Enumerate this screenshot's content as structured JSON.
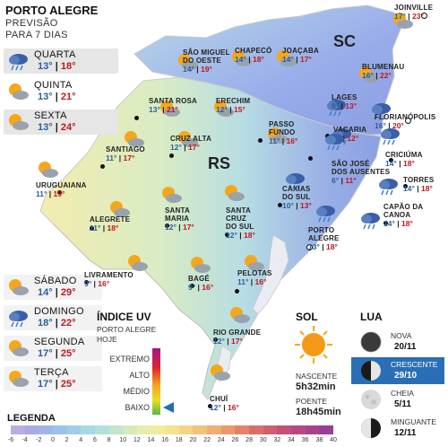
{
  "header": {
    "title": "PORTO ALEGRE",
    "subtitle1": "PREVISÃO",
    "subtitle2": "PARA 7 DIAS"
  },
  "forecast": [
    {
      "day": "QUARTA",
      "min": "13°",
      "max": "18°",
      "icon": "rain-cloud-icon"
    },
    {
      "day": "QUINTA",
      "min": "13°",
      "max": "21°",
      "icon": "sun-cloud-icon"
    },
    {
      "day": "SEXTA",
      "min": "13°",
      "max": "24°",
      "icon": "sun-cloud-icon"
    },
    {
      "day": "SÁBADO",
      "min": "14°",
      "max": "29°",
      "icon": "sun-cloud-icon"
    },
    {
      "day": "DOMINGO",
      "min": "18°",
      "max": "22°",
      "icon": "rain-cloud-icon"
    },
    {
      "day": "SEGUNDA",
      "min": "17°",
      "max": "25°",
      "icon": "sun-cloud-icon"
    },
    {
      "day": "TERÇA",
      "min": "17°",
      "max": "25°",
      "icon": "sun-cloud-icon"
    }
  ],
  "states": {
    "rs": "RS",
    "sc": "SC"
  },
  "cities": [
    {
      "name": "JOINVILLE",
      "min": "17°",
      "max": "23°"
    },
    {
      "name": "SÃO MIGUEL\nDO OESTE",
      "min": "14°",
      "max": "19°"
    },
    {
      "name": "CHAPECÓ",
      "min": "14°",
      "max": "18°"
    },
    {
      "name": "JOAÇABA",
      "min": "14°",
      "max": "17°"
    },
    {
      "name": "BLUMENAU",
      "min": "16°",
      "max": "22°"
    },
    {
      "name": "LAGES",
      "min": "8°",
      "max": "13°"
    },
    {
      "name": "FLORIANÓPOLIS",
      "min": "16°",
      "max": "20°"
    },
    {
      "name": "SANTA ROSA",
      "min": "13°",
      "max": "21°"
    },
    {
      "name": "ERECHIM",
      "min": "12°",
      "max": "15°"
    },
    {
      "name": "PASSO\nFUNDO",
      "min": "11°",
      "max": "16°"
    },
    {
      "name": "VACARIA",
      "min": "8°",
      "max": "12°"
    },
    {
      "name": "SÃO JOSÉ\nDOS AUSENTES",
      "min": "6°",
      "max": "11°"
    },
    {
      "name": "CRICIÚMA",
      "min": "14°",
      "max": "18°"
    },
    {
      "name": "SANTIAGO",
      "min": "11°",
      "max": "17°"
    },
    {
      "name": "CRUZ ALTA",
      "min": "12°",
      "max": "17°"
    },
    {
      "name": "URUGUAIANA",
      "min": "11°",
      "max": "19°"
    },
    {
      "name": "CAXIAS\nDO SUL",
      "min": "10°",
      "max": "13°"
    },
    {
      "name": "TORRES",
      "min": "14°",
      "max": "18°"
    },
    {
      "name": "SANTA\nMARIA",
      "min": "12°",
      "max": "17°"
    },
    {
      "name": "SANTA\nCRUZ\nDO SUL",
      "min": "12°",
      "max": "18°"
    },
    {
      "name": "ALEGRETE",
      "min": "11°",
      "max": "18°"
    },
    {
      "name": "PORTO\nALEGRE",
      "min": "13°",
      "max": "18°"
    },
    {
      "name": "CAPÃO DA\nCANOA",
      "min": "14°",
      "max": "18°"
    },
    {
      "name": "LIVRAMENTO",
      "min": "9°",
      "max": "16°"
    },
    {
      "name": "BAGÉ",
      "min": "9°",
      "max": "16°"
    },
    {
      "name": "PELOTAS",
      "min": "11°",
      "max": "16°"
    },
    {
      "name": "RIO GRANDE",
      "min": "12°",
      "max": "17°"
    },
    {
      "name": "CHUÍ",
      "min": "12°",
      "max": "16°"
    }
  ],
  "uv": {
    "title": "ÍNDICE UV",
    "subtitle1": "PORTO ALEGRE",
    "subtitle2": "HOJE",
    "levels": [
      "EXTREMO",
      "ALTO",
      "MÉDIO",
      "BAIXO"
    ],
    "current_level": "BAIXO"
  },
  "sun": {
    "title": "SOL",
    "rise_label": "NASCENTE",
    "rise_time": "5h32min",
    "set_label": "POENTE",
    "set_time": "18h45min"
  },
  "moon": {
    "title": "LUA",
    "phases": [
      {
        "label": "NOVA",
        "date": "20/11",
        "active": false
      },
      {
        "label": "CRESCENTE",
        "date": "29/10",
        "active": true
      },
      {
        "label": "CHEIA",
        "date": "5/11",
        "active": false
      },
      {
        "label": "MINGUANTE",
        "date": "12/11",
        "active": false
      }
    ]
  },
  "legend": {
    "title": "LEGENDA",
    "ticks": [
      "-6",
      "-4",
      "-2",
      "0",
      "2",
      "4",
      "6",
      "8",
      "10",
      "12",
      "14",
      "16",
      "18",
      "20",
      "22",
      "24",
      "26",
      "28",
      "30",
      "32",
      "34",
      "36",
      "38",
      "40"
    ],
    "colors": [
      "#b9aee0",
      "#a9a9e6",
      "#9fb5ea",
      "#9cc2ec",
      "#a1cde9",
      "#a8d8e4",
      "#b2e0da",
      "#c2e6cc",
      "#d3ebbb",
      "#e5eeab",
      "#f0ec9e",
      "#f4e38f",
      "#f5d483",
      "#f3c27a",
      "#efae73",
      "#ea996d",
      "#e3836a",
      "#d96f6b",
      "#cf5e70",
      "#c45178",
      "#b84882",
      "#a9428c",
      "#9a3e95"
    ]
  },
  "colors": {
    "min_temp": "#2a5f9a",
    "max_temp": "#c0171e",
    "moon_active": "#2a6fb5"
  }
}
